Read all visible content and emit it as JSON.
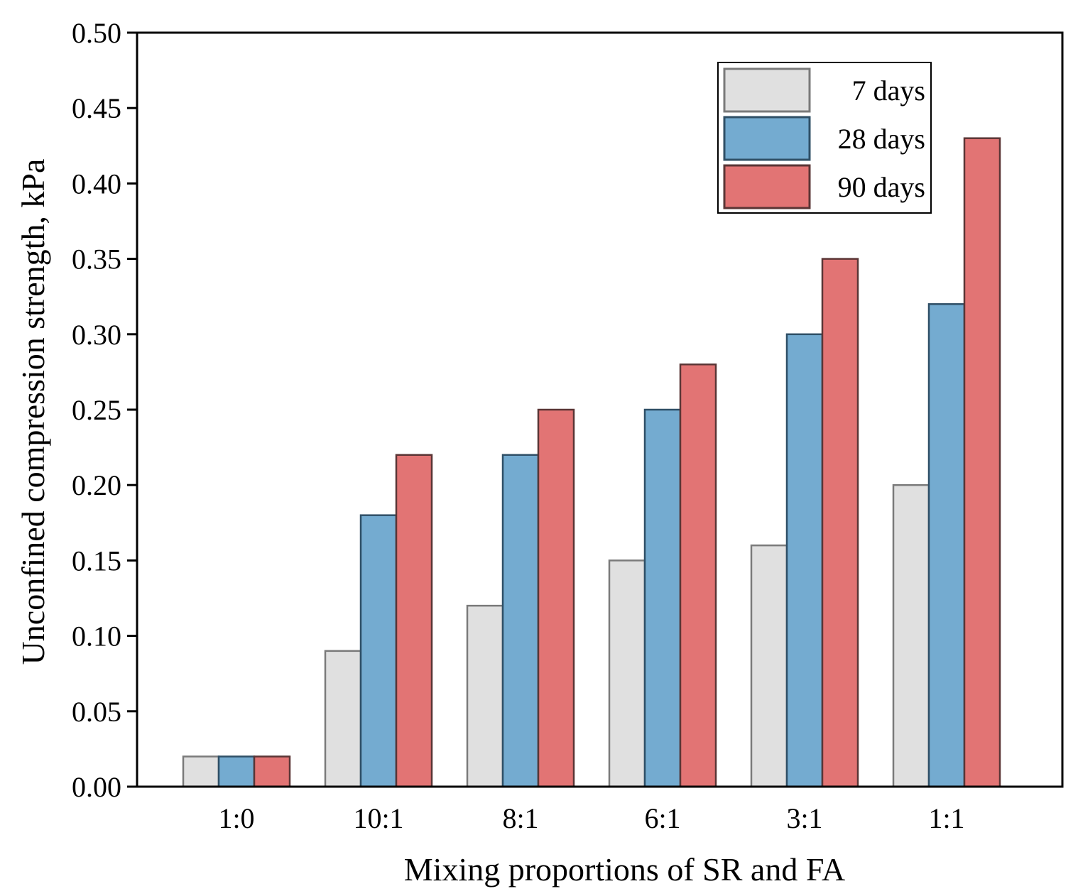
{
  "chart_data": {
    "type": "bar",
    "title": "",
    "xlabel": "Mixing proportions of SR and FA",
    "ylabel": "Unconfined compression strength, kPa",
    "categories": [
      "1:0",
      "10:1",
      "8:1",
      "6:1",
      "3:1",
      "1:1"
    ],
    "series": [
      {
        "name": "7 days",
        "color": "#e0e0e0",
        "stroke": "#7a7a7a",
        "values": [
          0.02,
          0.09,
          0.12,
          0.15,
          0.16,
          0.2
        ]
      },
      {
        "name": "28 days",
        "color": "#74abd0",
        "stroke": "#2f4f66",
        "values": [
          0.02,
          0.18,
          0.22,
          0.25,
          0.3,
          0.32
        ]
      },
      {
        "name": "90 days",
        "color": "#e27474",
        "stroke": "#5a3535",
        "values": [
          0.02,
          0.22,
          0.25,
          0.28,
          0.35,
          0.43
        ]
      }
    ],
    "ylim": [
      0,
      0.5
    ],
    "yticks": [
      "0.00",
      "0.05",
      "0.10",
      "0.15",
      "0.20",
      "0.25",
      "0.30",
      "0.35",
      "0.40",
      "0.45",
      "0.50"
    ],
    "legend_position": "top-right",
    "grid": false
  }
}
